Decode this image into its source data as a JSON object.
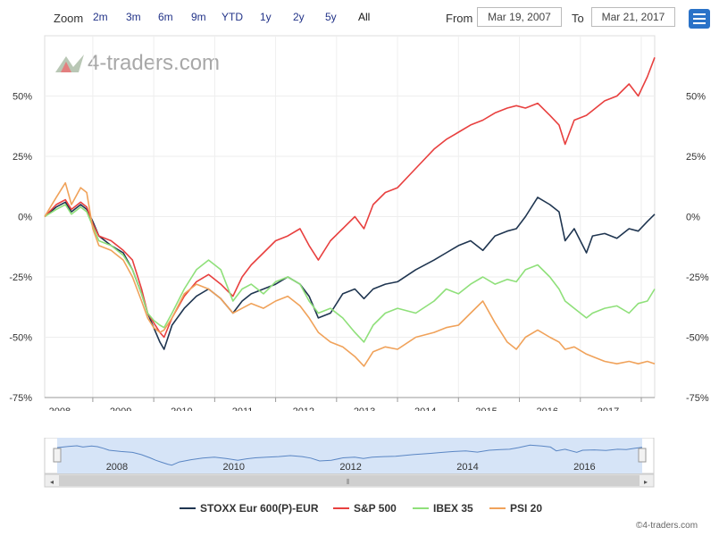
{
  "toolbar": {
    "zoom_label": "Zoom",
    "zoom_buttons": [
      "2m",
      "3m",
      "6m",
      "9m",
      "YTD",
      "1y",
      "2y",
      "5y",
      "All"
    ],
    "from_label": "From",
    "from_value": "Mar 19, 2007",
    "to_label": "To",
    "to_value": "Mar 21, 2017"
  },
  "logo": {
    "text": "4-traders.com"
  },
  "copyright": "©4-traders.com",
  "colors": {
    "stoxx": "#1f3550",
    "sp500": "#e8403f",
    "ibex": "#8fe07a",
    "psi": "#f0a25a",
    "menu": "#2a72c8",
    "navigator_fill": "#d6e4f7"
  },
  "chart_data": {
    "type": "line",
    "title": "",
    "xlabel": "",
    "ylabel": "",
    "ylim": [
      -75,
      75
    ],
    "xlim": [
      2007.21,
      2017.22
    ],
    "yticks": [
      -75,
      -50,
      -25,
      0,
      25,
      50
    ],
    "ytick_labels": [
      "-75%",
      "-50%",
      "-25%",
      "0%",
      "25%",
      "50%"
    ],
    "xticks": [
      2008,
      2009,
      2010,
      2011,
      2012,
      2013,
      2014,
      2015,
      2016,
      2017
    ],
    "xtick_labels": [
      "2008",
      "2009",
      "2010",
      "2011",
      "2012",
      "2013",
      "2014",
      "2015",
      "2016",
      "2017"
    ],
    "navigator_labels": [
      "2008",
      "2010",
      "2012",
      "2014",
      "2016"
    ],
    "series": [
      {
        "key": "stoxx",
        "name": "STOXX Eur 600(P)-EUR",
        "x": [
          2007.21,
          2007.4,
          2007.55,
          2007.65,
          2007.8,
          2007.9,
          2008.0,
          2008.1,
          2008.3,
          2008.5,
          2008.65,
          2008.8,
          2008.9,
          2009.0,
          2009.1,
          2009.17,
          2009.3,
          2009.5,
          2009.7,
          2009.9,
          2010.1,
          2010.3,
          2010.45,
          2010.6,
          2010.8,
          2011.0,
          2011.2,
          2011.4,
          2011.55,
          2011.7,
          2011.9,
          2012.1,
          2012.3,
          2012.45,
          2012.6,
          2012.8,
          2013.0,
          2013.3,
          2013.6,
          2013.8,
          2014.0,
          2014.2,
          2014.4,
          2014.6,
          2014.8,
          2014.95,
          2015.1,
          2015.3,
          2015.5,
          2015.65,
          2015.75,
          2015.9,
          2016.1,
          2016.2,
          2016.4,
          2016.6,
          2016.8,
          2016.95,
          2017.1,
          2017.22
        ],
        "values": [
          0,
          4,
          6,
          2,
          5,
          3,
          -2,
          -8,
          -12,
          -15,
          -22,
          -32,
          -40,
          -46,
          -52,
          -55,
          -45,
          -38,
          -33,
          -30,
          -34,
          -40,
          -35,
          -32,
          -30,
          -28,
          -25,
          -28,
          -33,
          -42,
          -40,
          -32,
          -30,
          -34,
          -30,
          -28,
          -27,
          -22,
          -18,
          -15,
          -12,
          -10,
          -14,
          -8,
          -6,
          -5,
          0,
          8,
          5,
          2,
          -10,
          -5,
          -15,
          -8,
          -7,
          -9,
          -5,
          -6,
          -2,
          1
        ]
      },
      {
        "key": "sp500",
        "name": "S&P 500",
        "x": [
          2007.21,
          2007.4,
          2007.55,
          2007.65,
          2007.8,
          2007.9,
          2008.0,
          2008.1,
          2008.3,
          2008.5,
          2008.65,
          2008.8,
          2008.9,
          2009.0,
          2009.1,
          2009.17,
          2009.3,
          2009.5,
          2009.7,
          2009.9,
          2010.1,
          2010.3,
          2010.45,
          2010.6,
          2010.8,
          2011.0,
          2011.2,
          2011.4,
          2011.55,
          2011.7,
          2011.9,
          2012.1,
          2012.3,
          2012.45,
          2012.6,
          2012.8,
          2013.0,
          2013.3,
          2013.6,
          2013.8,
          2014.0,
          2014.2,
          2014.4,
          2014.6,
          2014.8,
          2014.95,
          2015.1,
          2015.3,
          2015.5,
          2015.65,
          2015.75,
          2015.9,
          2016.1,
          2016.2,
          2016.4,
          2016.6,
          2016.8,
          2016.95,
          2017.1,
          2017.22
        ],
        "values": [
          0,
          5,
          7,
          3,
          6,
          4,
          -3,
          -8,
          -10,
          -14,
          -18,
          -30,
          -40,
          -44,
          -48,
          -50,
          -42,
          -33,
          -27,
          -24,
          -28,
          -33,
          -25,
          -20,
          -15,
          -10,
          -8,
          -5,
          -12,
          -18,
          -10,
          -5,
          0,
          -5,
          5,
          10,
          12,
          20,
          28,
          32,
          35,
          38,
          40,
          43,
          45,
          46,
          45,
          47,
          42,
          38,
          30,
          40,
          42,
          44,
          48,
          50,
          55,
          50,
          58,
          66
        ]
      },
      {
        "key": "ibex",
        "name": "IBEX 35",
        "x": [
          2007.21,
          2007.4,
          2007.55,
          2007.65,
          2007.8,
          2007.9,
          2008.0,
          2008.1,
          2008.3,
          2008.5,
          2008.65,
          2008.8,
          2008.9,
          2009.0,
          2009.1,
          2009.17,
          2009.3,
          2009.5,
          2009.7,
          2009.9,
          2010.1,
          2010.3,
          2010.45,
          2010.6,
          2010.8,
          2011.0,
          2011.2,
          2011.4,
          2011.55,
          2011.7,
          2011.9,
          2012.1,
          2012.3,
          2012.45,
          2012.6,
          2012.8,
          2013.0,
          2013.3,
          2013.6,
          2013.8,
          2014.0,
          2014.2,
          2014.4,
          2014.6,
          2014.8,
          2014.95,
          2015.1,
          2015.3,
          2015.5,
          2015.65,
          2015.75,
          2015.9,
          2016.1,
          2016.2,
          2016.4,
          2016.6,
          2016.8,
          2016.95,
          2017.1,
          2017.22
        ],
        "values": [
          0,
          3,
          5,
          1,
          4,
          2,
          -4,
          -10,
          -12,
          -16,
          -22,
          -32,
          -40,
          -43,
          -45,
          -46,
          -40,
          -30,
          -22,
          -18,
          -22,
          -35,
          -30,
          -28,
          -32,
          -27,
          -25,
          -28,
          -35,
          -40,
          -38,
          -42,
          -48,
          -52,
          -45,
          -40,
          -38,
          -40,
          -35,
          -30,
          -32,
          -28,
          -25,
          -28,
          -26,
          -27,
          -22,
          -20,
          -25,
          -30,
          -35,
          -38,
          -42,
          -40,
          -38,
          -37,
          -40,
          -36,
          -35,
          -30
        ]
      },
      {
        "key": "psi",
        "name": "PSI 20",
        "x": [
          2007.21,
          2007.4,
          2007.55,
          2007.65,
          2007.8,
          2007.9,
          2008.0,
          2008.1,
          2008.3,
          2008.5,
          2008.65,
          2008.8,
          2008.9,
          2009.0,
          2009.1,
          2009.17,
          2009.3,
          2009.5,
          2009.7,
          2009.9,
          2010.1,
          2010.3,
          2010.45,
          2010.6,
          2010.8,
          2011.0,
          2011.2,
          2011.4,
          2011.55,
          2011.7,
          2011.9,
          2012.1,
          2012.3,
          2012.45,
          2012.6,
          2012.8,
          2013.0,
          2013.3,
          2013.6,
          2013.8,
          2014.0,
          2014.2,
          2014.4,
          2014.6,
          2014.8,
          2014.95,
          2015.1,
          2015.3,
          2015.5,
          2015.65,
          2015.75,
          2015.9,
          2016.1,
          2016.2,
          2016.4,
          2016.6,
          2016.8,
          2016.95,
          2017.1,
          2017.22
        ],
        "values": [
          0,
          8,
          14,
          5,
          12,
          10,
          -5,
          -12,
          -14,
          -18,
          -25,
          -35,
          -42,
          -46,
          -48,
          -47,
          -42,
          -32,
          -28,
          -30,
          -34,
          -40,
          -38,
          -36,
          -38,
          -35,
          -33,
          -37,
          -42,
          -48,
          -52,
          -54,
          -58,
          -62,
          -56,
          -54,
          -55,
          -50,
          -48,
          -46,
          -45,
          -40,
          -35,
          -44,
          -52,
          -55,
          -50,
          -47,
          -50,
          -52,
          -55,
          -54,
          -57,
          -58,
          -60,
          -61,
          -60,
          -61,
          -60,
          -61
        ]
      }
    ]
  }
}
